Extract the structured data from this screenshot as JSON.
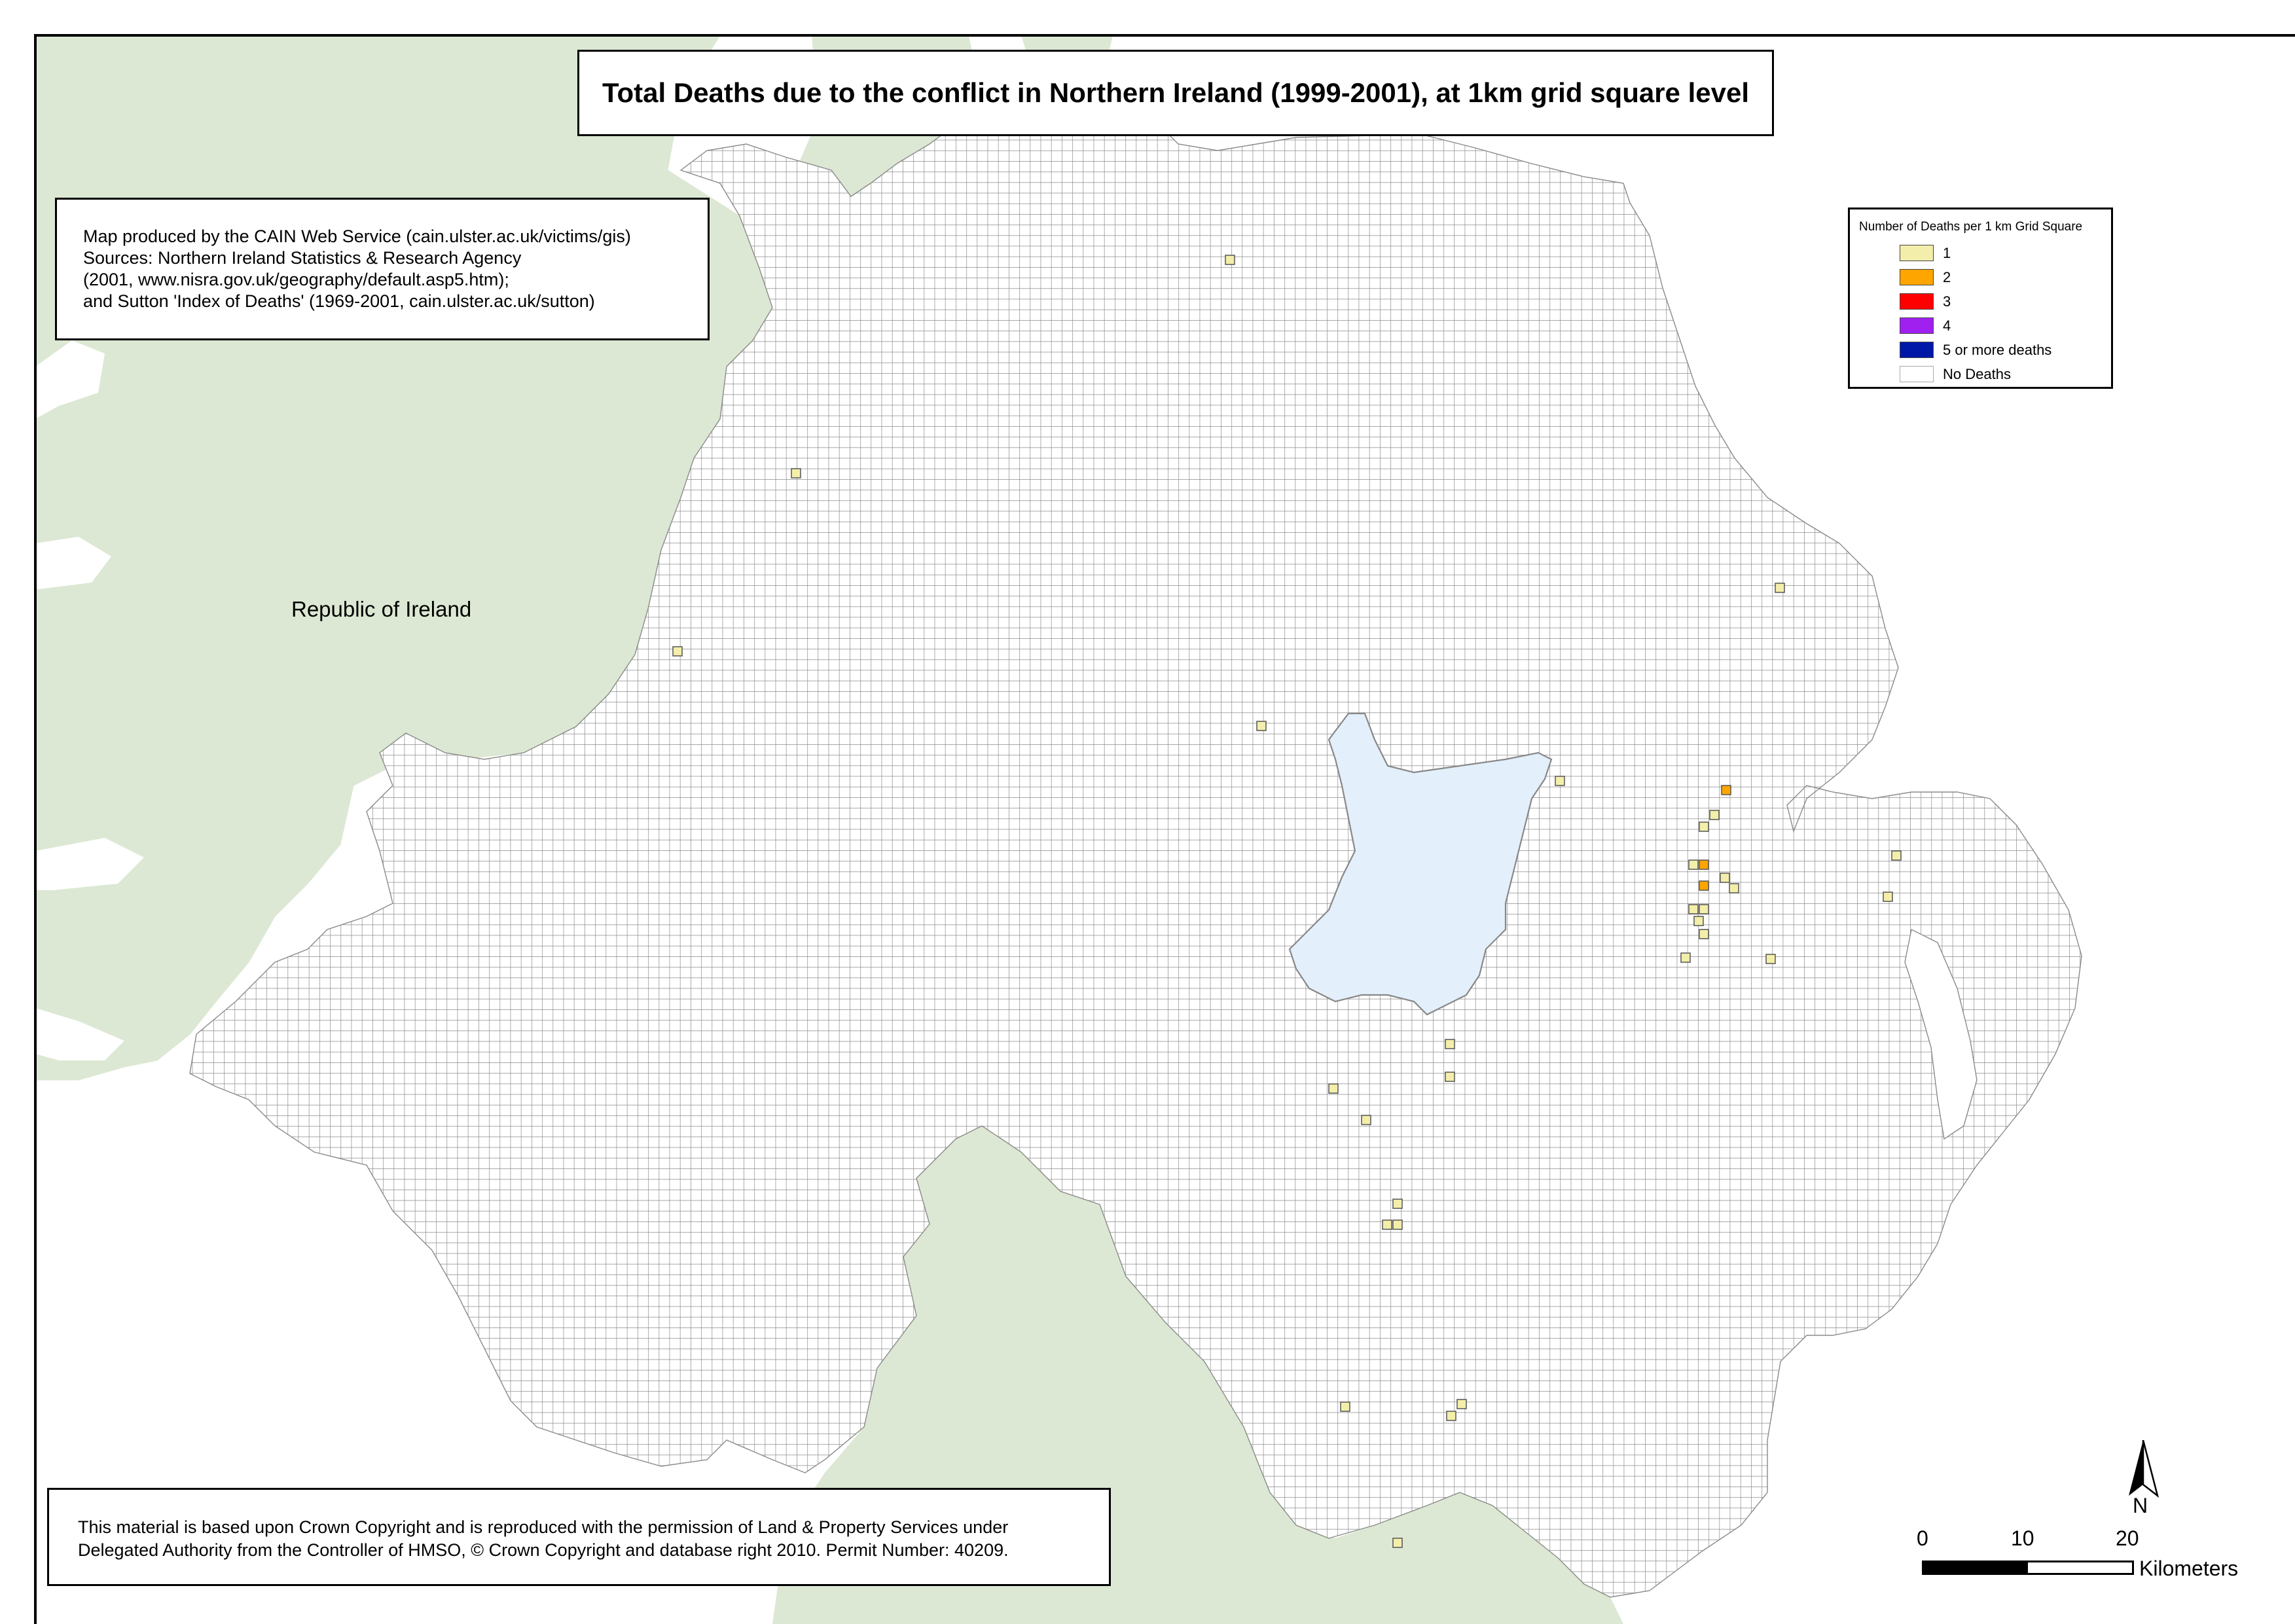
{
  "title": "Total Deaths due to the conflict in Northern Ireland (1999-2001), at 1km grid square level",
  "credit": {
    "line1": "Map produced by the CAIN Web Service (cain.ulster.ac.uk/victims/gis)",
    "line2": "Sources: Northern Ireland Statistics & Research Agency",
    "line3": "(2001, www.nisra.gov.uk/geography/default.asp5.htm);",
    "line4": "and Sutton 'Index of Deaths' (1969-2001, cain.ulster.ac.uk/sutton)"
  },
  "legend": {
    "title": "Number of Deaths per 1 km Grid Square",
    "items": [
      {
        "label": "1",
        "color": "#f3eeaa"
      },
      {
        "label": "2",
        "color": "#ffa500"
      },
      {
        "label": "3",
        "color": "#ff0000"
      },
      {
        "label": "4",
        "color": "#a020f0"
      },
      {
        "label": "5 or more deaths",
        "color": "#0018a8"
      },
      {
        "label": "No Deaths",
        "color": "#ffffff"
      }
    ]
  },
  "place_label": "Republic of Ireland",
  "footer": {
    "line1": "This material is based upon Crown Copyright and is reproduced with the permission of Land & Property Services under",
    "line2": "Delegated Authority from the Controller of HMSO, © Crown Copyright and database right 2010. Permit Number: 40209."
  },
  "north_label": "N",
  "scale": {
    "ticks": [
      "0",
      "10",
      "20"
    ],
    "unit": "Kilometers"
  },
  "colors": {
    "land": "#dce8d3",
    "lake": "#e3f0fb",
    "grid_line": "#8a8a8a"
  },
  "deaths": {
    "count_1_squares": 30,
    "count_2_squares": 3
  }
}
